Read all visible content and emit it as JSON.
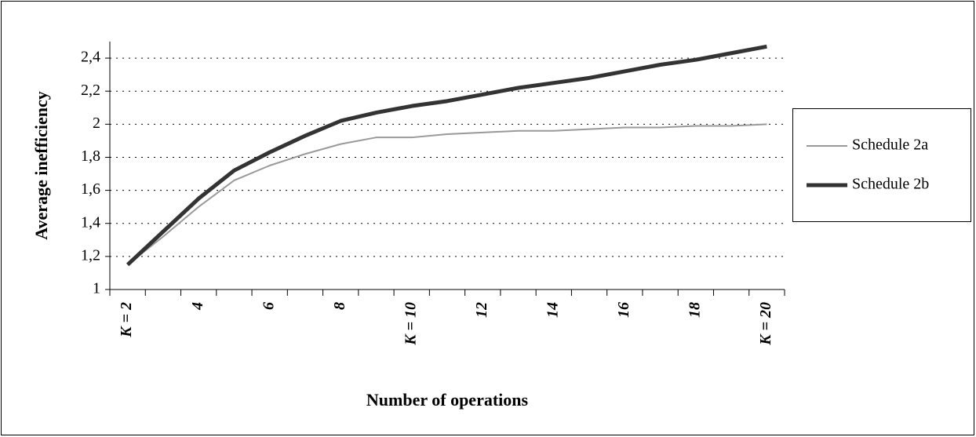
{
  "chart_data": {
    "type": "line",
    "x_label": "Number of operations",
    "y_label": "Average inefficiency",
    "categories": [
      "K = 2",
      null,
      "4",
      null,
      "6",
      null,
      "8",
      null,
      "K = 10",
      null,
      "12",
      null,
      "14",
      null,
      "16",
      null,
      "18",
      null,
      "K = 20"
    ],
    "series": [
      {
        "name": "Schedule 2a",
        "color": "#999999",
        "values": [
          1.15,
          1.32,
          1.5,
          1.66,
          1.75,
          1.82,
          1.88,
          1.92,
          1.92,
          1.94,
          1.95,
          1.96,
          1.96,
          1.97,
          1.98,
          1.98,
          1.99,
          1.99,
          2.0
        ]
      },
      {
        "name": "Schedule 2b",
        "color": "#333333",
        "values": [
          1.15,
          1.35,
          1.55,
          1.72,
          1.83,
          1.93,
          2.02,
          2.07,
          2.11,
          2.14,
          2.18,
          2.22,
          2.25,
          2.28,
          2.32,
          2.36,
          2.39,
          2.43,
          2.47
        ]
      }
    ],
    "ylim": [
      1,
      2.5
    ],
    "yticks": [
      1,
      {
        "value": 1.2,
        "label": "1,2"
      },
      {
        "value": 1.4,
        "label": "1,4"
      },
      {
        "value": 1.6,
        "label": "1,6"
      },
      {
        "value": 1.8,
        "label": "1,8"
      },
      2,
      {
        "value": 2.2,
        "label": "2,2"
      },
      {
        "value": 2.4,
        "label": "2,4"
      }
    ],
    "grid": true,
    "legend": "right"
  }
}
